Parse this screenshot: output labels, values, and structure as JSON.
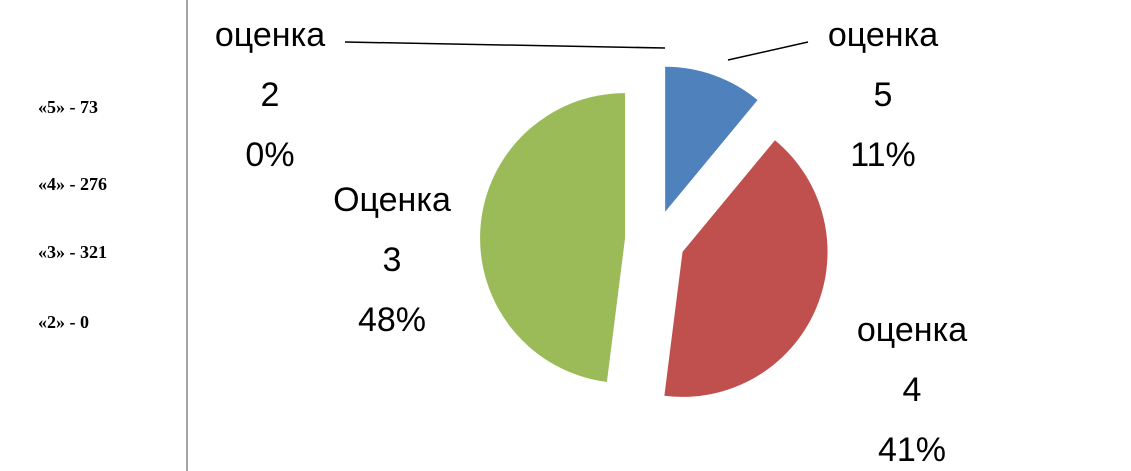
{
  "side_list": [
    "«5» - 73",
    "«4» - 276",
    "«3» - 321",
    "«2» - 0"
  ],
  "chart_data": {
    "type": "pie",
    "categories": [
      "оценка 5",
      "оценка 4",
      "Оценка 3",
      "оценка 2"
    ],
    "values": [
      11,
      41,
      48,
      0
    ],
    "value_labels": [
      "11%",
      "41%",
      "48%",
      "0%"
    ],
    "colors": [
      "#4f81bd",
      "#c0504d",
      "#9bbb59",
      "#8064a2"
    ],
    "exploded": true
  }
}
